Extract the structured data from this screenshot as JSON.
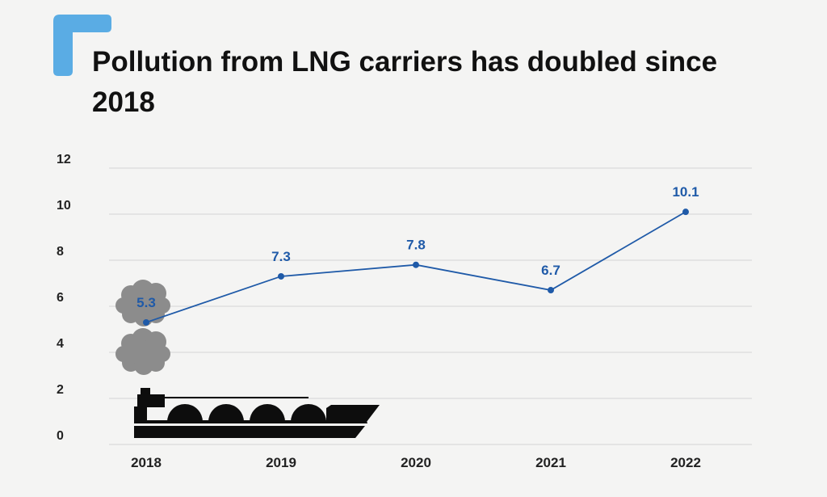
{
  "title": "Pollution from LNG carriers has doubled since 2018",
  "colors": {
    "accent": "#5aace4",
    "line": "#1f5aa8",
    "grid": "#d4d4d4",
    "cloud": "#8c8c8c",
    "ship": "#0d0d0d"
  },
  "icons": [
    "cloud-icon",
    "lng-carrier-ship-icon"
  ],
  "chart_data": {
    "type": "line",
    "title": "Pollution from LNG carriers has doubled since 2018",
    "xlabel": "",
    "ylabel": "",
    "categories": [
      "2018",
      "2019",
      "2020",
      "2021",
      "2022"
    ],
    "series": [
      {
        "values": [
          5.3,
          7.3,
          7.8,
          6.7,
          10.1
        ]
      }
    ],
    "data_labels": [
      "5.3",
      "7.3",
      "7.8",
      "6.7",
      "10.1"
    ],
    "yticks": [
      "0",
      "2",
      "4",
      "6",
      "8",
      "10",
      "12"
    ],
    "ylim": [
      0,
      12
    ],
    "grid": true,
    "legend": "none"
  }
}
